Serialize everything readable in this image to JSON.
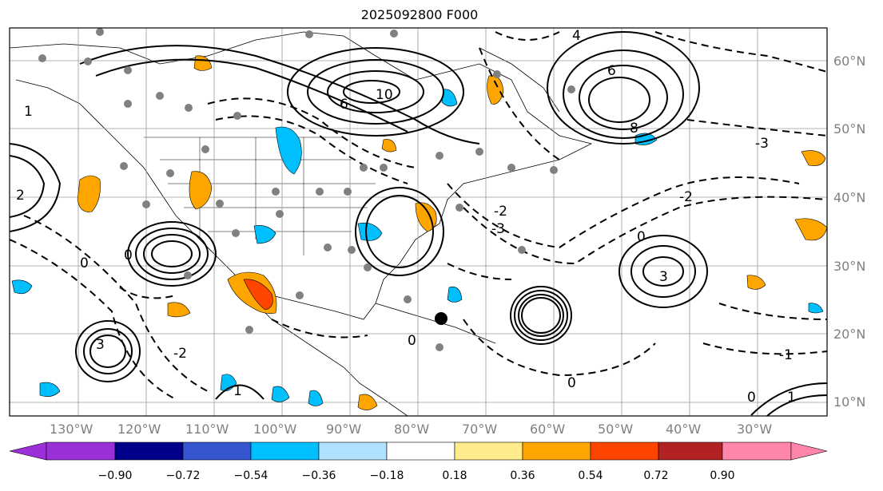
{
  "title": "2025092800 F000",
  "lon_labels": [
    "130°W",
    "120°W",
    "110°W",
    "100°W",
    "90°W",
    "80°W",
    "70°W",
    "60°W",
    "50°W",
    "40°W",
    "30°W"
  ],
  "lat_labels": [
    "60°N",
    "50°N",
    "40°N",
    "30°N",
    "20°N",
    "10°N"
  ],
  "colorbar": {
    "colors": [
      "#9b30d9",
      "#00008b",
      "#3656d0",
      "#00bfff",
      "#b0e2ff",
      "#ffffff",
      "#ffea8c",
      "#ffa500",
      "#ff4500",
      "#b22222",
      "#ff85aa"
    ],
    "labels": [
      "−0.90",
      "−0.72",
      "−0.54",
      "−0.36",
      "−0.18",
      "0.18",
      "0.36",
      "0.54",
      "0.72",
      "0.90"
    ]
  },
  "contour_labels": {
    "c_neg3": "-3",
    "c_neg2": "-2",
    "c_neg1": "-1",
    "c_0": "0",
    "c_1": "1",
    "c_2": "2",
    "c_3": "3",
    "c_4": "4",
    "c_6": "6",
    "c_8": "8",
    "c_10": "10"
  }
}
